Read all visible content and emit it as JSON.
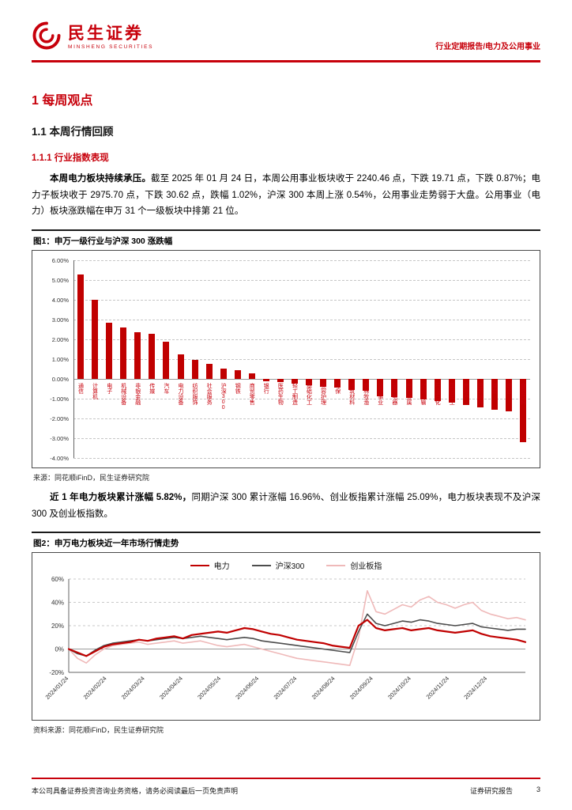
{
  "header": {
    "logo_title": "民生证券",
    "logo_subtitle": "MINSHENG SECURITIES",
    "report_type": "行业定期报告/电力及公用事业"
  },
  "sections": {
    "h1": "1 每周观点",
    "h2": "1.1 本周行情回顾",
    "h3": "1.1.1 行业指数表现"
  },
  "paragraph1": {
    "bold": "本周电力板块持续承压。",
    "text": "截至 2025 年 01 月 24 日，本周公用事业板块收于 2240.46 点，下跌 19.71 点，下跌 0.87%；电力子板块收于 2975.70 点，下跌 30.62 点，跌幅 1.02%，沪深 300 本周上涨 0.54%，公用事业走势弱于大盘。公用事业（电力）板块涨跌幅在申万 31 个一级板块中排第 21 位。"
  },
  "figure1": {
    "caption": "图1：申万一级行业与沪深 300 涨跌幅",
    "source": "来源：同花顺iFinD，民生证券研究院"
  },
  "paragraph2": {
    "bold": "近 1 年电力板块累计涨幅 5.82%，",
    "text": "同期沪深 300 累计涨幅 16.96%、创业板指累计涨幅 25.09%，电力板块表现不及沪深 300 及创业板指数。"
  },
  "figure2": {
    "caption": "图2：申万电力板块近一年市场行情走势",
    "source": "资料来源：同花顺iFinD，民生证券研究院"
  },
  "footer": {
    "left": "本公司具备证券投资咨询业务资格，请务必阅读最后一页免责声明",
    "right": "证券研究报告",
    "page": "3"
  },
  "chart_data": [
    {
      "type": "bar",
      "title": "申万一级行业与沪深 300 涨跌幅",
      "categories": [
        "通信",
        "计算机",
        "电子",
        "机械设备",
        "非银金融",
        "传媒",
        "汽车",
        "电力设备",
        "纺织服饰",
        "社会服务",
        "沪深300",
        "钢铁",
        "商贸零售",
        "银行",
        "医药生物",
        "轻工制造",
        "基础化工",
        "美容护理",
        "环保",
        "建筑材料",
        "农林牧渔",
        "公用事业",
        "家用电器",
        "有色金属",
        "交通运输",
        "石油石化",
        "国防军工",
        "房地产",
        "建筑装饰",
        "煤炭",
        "综合",
        "食品饮料"
      ],
      "values": [
        5.3,
        4.0,
        2.85,
        2.6,
        2.35,
        2.3,
        1.9,
        1.25,
        0.95,
        0.75,
        0.54,
        0.45,
        0.3,
        -0.1,
        -0.15,
        -0.25,
        -0.3,
        -0.4,
        -0.45,
        -0.55,
        -0.6,
        -0.87,
        -0.9,
        -0.95,
        -1.05,
        -1.1,
        -1.2,
        -1.3,
        -1.45,
        -1.55,
        -1.65,
        -3.2
      ],
      "ylim": [
        -4,
        6
      ],
      "yticks": [
        6,
        5,
        4,
        3,
        2,
        1,
        0,
        -1,
        -2,
        -3,
        -4
      ],
      "ytick_labels": [
        "6.00%",
        "5.00%",
        "4.00%",
        "3.00%",
        "2.00%",
        "1.00%",
        "0.00%",
        "-1.00%",
        "-2.00%",
        "-3.00%",
        "-4.00%"
      ],
      "bar_color": "#C00000",
      "label_color": "#C7000B",
      "grid": true
    },
    {
      "type": "line",
      "title": "申万电力板块近一年市场行情走势",
      "x_labels": [
        "2024/01/24",
        "2024/02/24",
        "2024/03/24",
        "2024/04/24",
        "2024/05/24",
        "2024/06/24",
        "2024/07/24",
        "2024/08/24",
        "2024/09/24",
        "2024/10/24",
        "2024/11/24",
        "2024/12/24"
      ],
      "ylim": [
        -20,
        60
      ],
      "yticks": [
        60,
        40,
        20,
        0,
        -20
      ],
      "ytick_labels": [
        "60%",
        "40%",
        "20%",
        "0%",
        "-20%"
      ],
      "legend_position": "top",
      "series": [
        {
          "name": "电力",
          "color": "#C00000",
          "width": 2.2,
          "values": [
            0,
            -3,
            -6,
            -2,
            2,
            4,
            5,
            6,
            8,
            7,
            9,
            10,
            11,
            9,
            12,
            13,
            14,
            15,
            14,
            16,
            18,
            17,
            15,
            13,
            12,
            10,
            8,
            7,
            6,
            5,
            3,
            2,
            1,
            20,
            25,
            18,
            16,
            17,
            18,
            16,
            17,
            18,
            16,
            15,
            14,
            15,
            16,
            13,
            11,
            10,
            9,
            8,
            6
          ]
        },
        {
          "name": "沪深300",
          "color": "#4D4D4D",
          "width": 1.6,
          "values": [
            0,
            -4,
            -6,
            -1,
            3,
            5,
            6,
            7,
            8,
            7,
            8,
            9,
            10,
            9,
            10,
            11,
            10,
            9,
            8,
            9,
            10,
            9,
            7,
            6,
            5,
            4,
            3,
            2,
            1,
            0,
            -1,
            -2,
            -3,
            15,
            30,
            22,
            20,
            22,
            24,
            23,
            25,
            24,
            22,
            21,
            20,
            21,
            22,
            19,
            18,
            17,
            16,
            17,
            17
          ]
        },
        {
          "name": "创业板指",
          "color": "#EFB9B9",
          "width": 1.6,
          "values": [
            0,
            -8,
            -12,
            -5,
            0,
            3,
            4,
            5,
            6,
            4,
            5,
            6,
            7,
            5,
            6,
            7,
            5,
            3,
            2,
            3,
            4,
            2,
            0,
            -2,
            -4,
            -6,
            -8,
            -9,
            -10,
            -11,
            -12,
            -13,
            -14,
            10,
            50,
            32,
            30,
            34,
            38,
            36,
            42,
            45,
            40,
            38,
            35,
            38,
            40,
            33,
            30,
            28,
            26,
            27,
            25
          ]
        }
      ]
    }
  ]
}
